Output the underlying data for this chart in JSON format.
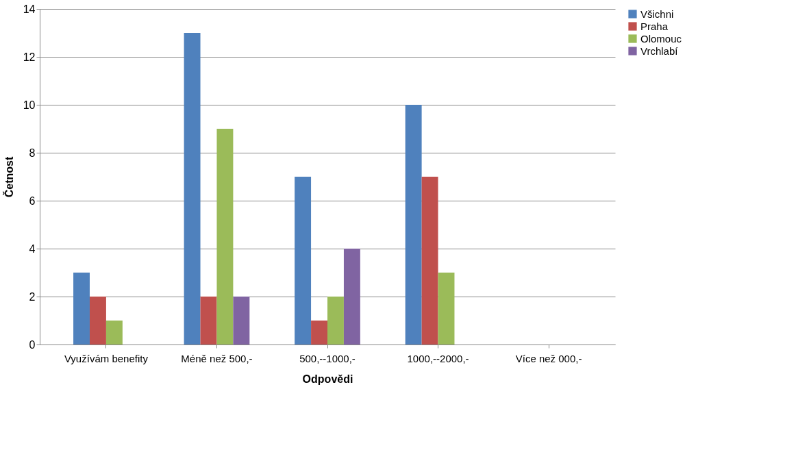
{
  "chart_data": {
    "type": "bar",
    "xlabel": "Odpovědi",
    "ylabel": "Četnost",
    "categories": [
      "Využívám benefity",
      "Méně než 500,-",
      "500,--1000,-",
      "1000,--2000,-",
      "Více než 000,-"
    ],
    "series": [
      {
        "name": "Všichni",
        "color": "#4f81bd",
        "values": [
          3,
          13,
          7,
          10,
          0
        ]
      },
      {
        "name": "Praha",
        "color": "#c0504d",
        "values": [
          2,
          2,
          1,
          7,
          0
        ]
      },
      {
        "name": "Olomouc",
        "color": "#9bbb59",
        "values": [
          1,
          9,
          2,
          3,
          0
        ]
      },
      {
        "name": "Vrchlabí",
        "color": "#8064a2",
        "values": [
          0,
          2,
          4,
          0,
          0
        ]
      }
    ],
    "ylim": [
      0,
      14
    ],
    "yticks": [
      0,
      2,
      4,
      6,
      8,
      10,
      12,
      14
    ],
    "grid": "y",
    "legend": "right"
  }
}
